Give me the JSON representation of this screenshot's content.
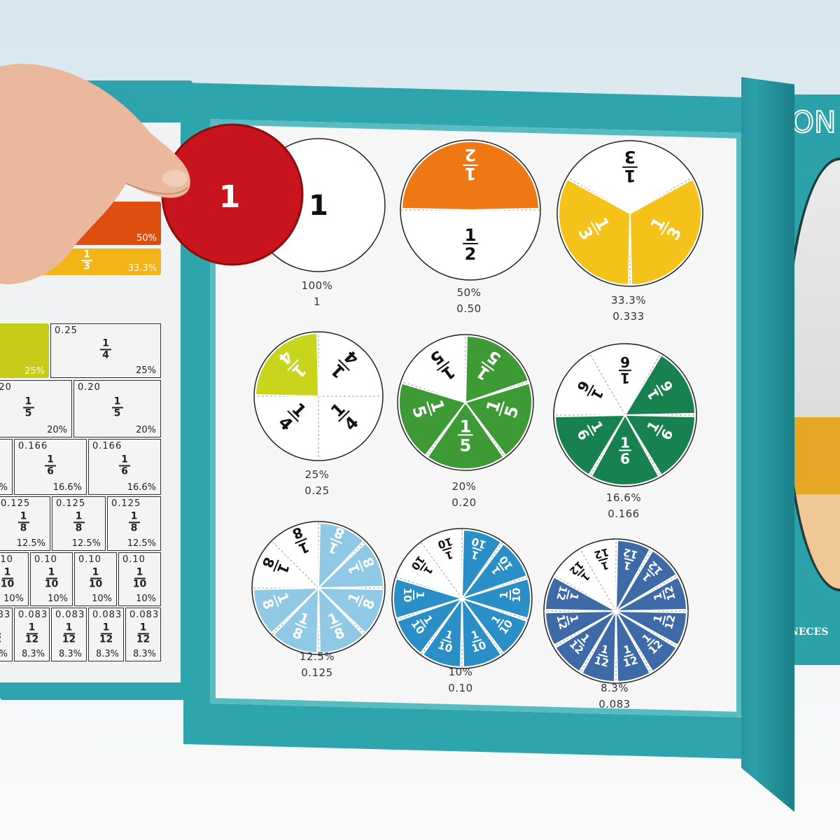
{
  "scene": "fraction board book photo",
  "right_page": {
    "title_partial": "ON",
    "bottom_partial": ": NECES"
  },
  "held_disc": {
    "numerator": "1",
    "color": "#c8141c"
  },
  "fraction_circles": [
    {
      "numerator": "1",
      "denominator": "1",
      "show_fraction": false,
      "whole_label": "1",
      "percent": "100%",
      "decimal": "1",
      "color": "#c8141c",
      "filled": 0
    },
    {
      "numerator": "1",
      "denominator": "2",
      "percent": "50%",
      "decimal": "0.50",
      "color": "#f07814",
      "filled": 1
    },
    {
      "numerator": "1",
      "denominator": "3",
      "percent": "33.3%",
      "decimal": "0.333",
      "color": "#f5c21a",
      "filled": 2
    },
    {
      "numerator": "1",
      "denominator": "4",
      "percent": "25%",
      "decimal": "0.25",
      "color": "#c9d41c",
      "filled": 1
    },
    {
      "numerator": "1",
      "denominator": "5",
      "percent": "20%",
      "decimal": "0.20",
      "color": "#3d9a34",
      "filled": 4
    },
    {
      "numerator": "1",
      "denominator": "6",
      "percent": "16.6%",
      "decimal": "0.166",
      "color": "#17824f",
      "filled": 4
    },
    {
      "numerator": "1",
      "denominator": "8",
      "percent": "12.5%",
      "decimal": "0.125",
      "color": "#8fc9e6",
      "filled": 6
    },
    {
      "numerator": "1",
      "denominator": "10",
      "percent": "10%",
      "decimal": "0.10",
      "color": "#2a8fc6",
      "filled": 8
    },
    {
      "numerator": "1",
      "denominator": "12",
      "percent": "8.3%",
      "decimal": "0.083",
      "color": "#3e6aa8",
      "filled": 10
    }
  ],
  "left_table": [
    {
      "denominator": "2",
      "decimal": "",
      "percent": "50%",
      "cells": [
        {
          "filled": true,
          "color": "#de4f0f",
          "show_fraction": false
        }
      ]
    },
    {
      "denominator": "3",
      "decimal": "",
      "percent": "33.3%",
      "cells": [
        {
          "filled": true,
          "color": "#f2b416",
          "show_fraction": false
        },
        {
          "filled": true,
          "color": "#f2b416",
          "show_fraction": true
        }
      ]
    },
    {
      "denominator": "4",
      "decimal": "0.25",
      "percent": "25%",
      "cells": [
        {
          "filled": true,
          "color": "#c6cc17",
          "show_fraction": false
        },
        {
          "filled": false
        }
      ]
    },
    {
      "denominator": "5",
      "decimal": "0.20",
      "percent": "20%",
      "cells": [
        {
          "filled": false
        },
        {
          "filled": false
        }
      ]
    },
    {
      "denominator": "6",
      "decimal": "0.166",
      "percent": "16.6%",
      "cells": [
        {
          "filled": false
        },
        {
          "filled": false
        },
        {
          "filled": false
        }
      ]
    },
    {
      "denominator": "8",
      "decimal": "0.125",
      "percent": "12.5%",
      "cells": [
        {
          "filled": false
        },
        {
          "filled": false
        },
        {
          "filled": false
        }
      ]
    },
    {
      "denominator": "10",
      "decimal": "0.10",
      "percent": "10%",
      "cells": [
        {
          "filled": false
        },
        {
          "filled": false
        },
        {
          "filled": false
        },
        {
          "filled": false
        }
      ]
    },
    {
      "denominator": "12",
      "decimal": "0.083",
      "percent": "8.3%",
      "cells": [
        {
          "filled": false
        },
        {
          "filled": false
        },
        {
          "filled": false
        },
        {
          "filled": false
        },
        {
          "filled": false
        }
      ]
    }
  ]
}
